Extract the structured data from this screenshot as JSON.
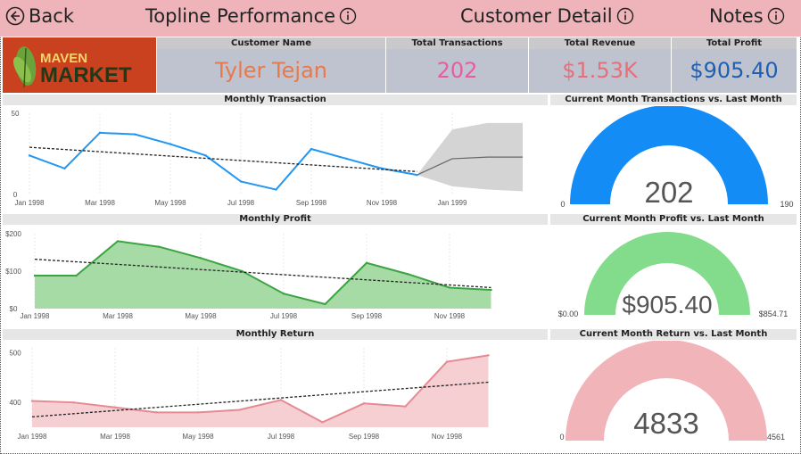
{
  "nav": {
    "back_label": "Back",
    "topline_label": "Topline Performance",
    "customer_label": "Customer Detail",
    "notes_label": "Notes"
  },
  "logo": {
    "line1": "MAVEN",
    "line2": "MARKET"
  },
  "kpis": {
    "customer_name_header": "Customer Name",
    "customer_name": "Tyler Tejan",
    "transactions_header": "Total Transactions",
    "transactions": "202",
    "revenue_header": "Total Revenue",
    "revenue": "$1.53K",
    "profit_header": "Total Profit",
    "profit": "$905.40"
  },
  "colors": {
    "nav_bg": "#efb4b9",
    "kpi_bg": "#bfc3cf",
    "name_color": "#e9794b",
    "transactions_color": "#e35ea3",
    "revenue_color": "#e4707a",
    "profit_color": "#1e5fb4",
    "transaction_line": "#2196f3",
    "profit_line": "#3ca342",
    "profit_fill": "#a6dba6",
    "return_line": "#e58a93",
    "return_fill": "#f6cfd3",
    "gauge_blue": "#148cf5",
    "gauge_green": "#82dc8c",
    "gauge_pink": "#f0b4b9"
  },
  "gauges": [
    {
      "title": "Current Month Transactions vs. Last Month",
      "value": "202",
      "min": "0",
      "max": "190",
      "color": "#148cf5"
    },
    {
      "title": "Current Month Profit vs. Last Month",
      "value": "$905.40",
      "min": "$0.00",
      "max": "$854.71",
      "color": "#82dc8c"
    },
    {
      "title": "Current Month Return vs. Last Month",
      "value": "4833",
      "min": "0",
      "max": "4561",
      "color": "#f0b4b9"
    }
  ],
  "chart_data": [
    {
      "type": "line",
      "title": "Monthly Transaction",
      "x": [
        "Jan 1998",
        "Feb 1998",
        "Mar 1998",
        "Apr 1998",
        "May 1998",
        "Jun 1998",
        "Jul 1998",
        "Aug 1998",
        "Sep 1998",
        "Oct 1998",
        "Nov 1998",
        "Dec 1998"
      ],
      "values": [
        24,
        16,
        38,
        37,
        31,
        24,
        8,
        3,
        28,
        22,
        16,
        12
      ],
      "x_ticks": [
        "Jan 1998",
        "Mar 1998",
        "May 1998",
        "Jul 1998",
        "Sep 1998",
        "Nov 1998",
        "Jan 1999"
      ],
      "y_ticks": [
        "0",
        "50"
      ],
      "ylim": [
        0,
        50
      ],
      "trend_line": true,
      "forecast": {
        "x": [
          "Dec 1998",
          "Jan 1999",
          "Feb 1999",
          "Mar 1999"
        ],
        "values": [
          12,
          22,
          23,
          23
        ],
        "upper": [
          12,
          40,
          44,
          44
        ],
        "lower": [
          12,
          5,
          3,
          2
        ]
      }
    },
    {
      "type": "area",
      "title": "Monthly Profit",
      "x": [
        "Jan 1998",
        "Feb 1998",
        "Mar 1998",
        "Apr 1998",
        "May 1998",
        "Jun 1998",
        "Jul 1998",
        "Aug 1998",
        "Sep 1998",
        "Oct 1998",
        "Nov 1998",
        "Dec 1998"
      ],
      "values": [
        88,
        88,
        180,
        165,
        135,
        100,
        40,
        12,
        122,
        92,
        56,
        50
      ],
      "x_ticks": [
        "Jan 1998",
        "Mar 1998",
        "May 1998",
        "Jul 1998",
        "Sep 1998",
        "Nov 1998"
      ],
      "y_ticks": [
        "$0",
        "$100",
        "$200"
      ],
      "ylim": [
        0,
        200
      ],
      "trend_line": true
    },
    {
      "type": "area",
      "title": "Monthly Return",
      "x": [
        "Jan 1998",
        "Feb 1998",
        "Mar 1998",
        "Apr 1998",
        "May 1998",
        "Jun 1998",
        "Jul 1998",
        "Aug 1998",
        "Sep 1998",
        "Oct 1998",
        "Nov 1998",
        "Dec 1998"
      ],
      "values": [
        403,
        400,
        390,
        380,
        380,
        385,
        405,
        360,
        398,
        392,
        482,
        495
      ],
      "x_ticks": [
        "Jan 1998",
        "Mar 1998",
        "May 1998",
        "Jul 1998",
        "Sep 1998",
        "Nov 1998"
      ],
      "y_ticks": [
        "400",
        "500"
      ],
      "ylim": [
        350,
        510
      ],
      "trend_line": true
    }
  ]
}
